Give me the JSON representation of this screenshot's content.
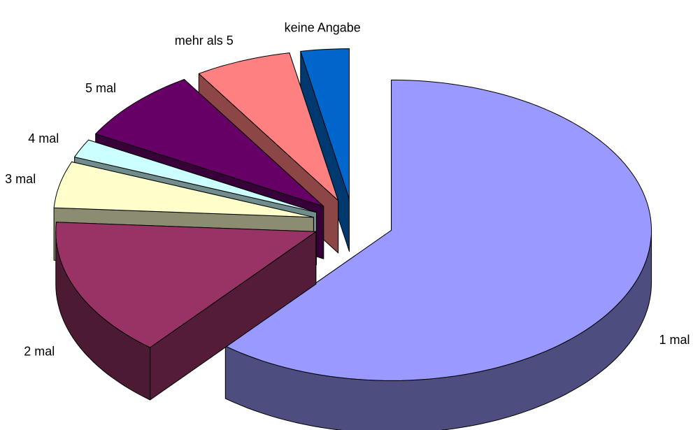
{
  "chart_data": {
    "type": "pie",
    "categories": [
      "1 mal",
      "2 mal",
      "3 mal",
      "4 mal",
      "5 mal",
      "mehr als 5",
      "keine Angabe"
    ],
    "values": [
      61,
      15,
      5,
      2,
      8,
      6,
      3
    ],
    "colors": [
      "#9999ff",
      "#993366",
      "#ffffcc",
      "#ccffff",
      "#660066",
      "#ff8080",
      "#0066cc"
    ],
    "exploded": true,
    "3d": true
  }
}
